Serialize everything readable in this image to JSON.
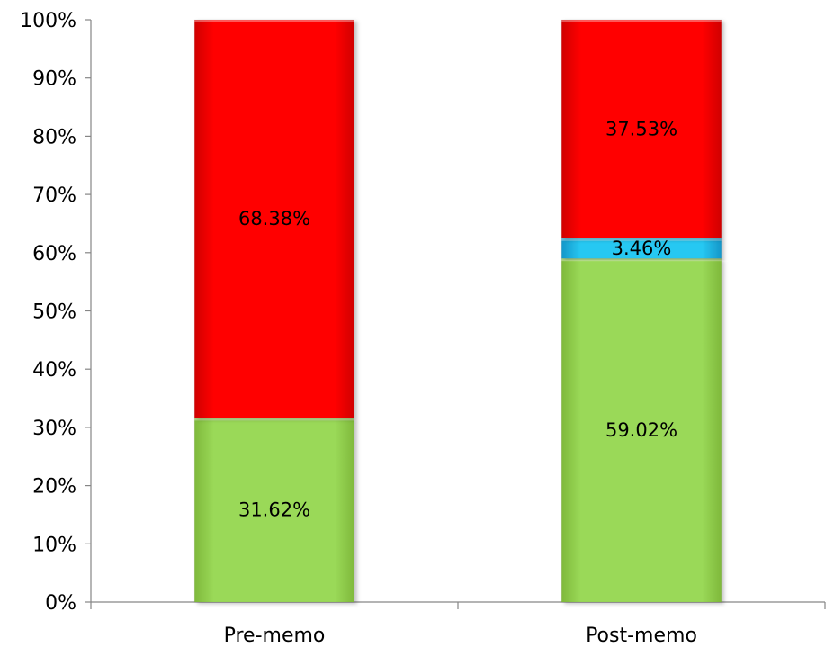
{
  "chart_data": {
    "type": "bar",
    "stacked": true,
    "percent_stacked": true,
    "categories": [
      "Pre-memo",
      "Post-memo"
    ],
    "series": [
      {
        "values": [
          31.62,
          59.02
        ],
        "labels": [
          "31.62%",
          "59.02%"
        ],
        "color": "#92D050"
      },
      {
        "values": [
          0,
          3.46
        ],
        "labels": [
          "",
          "3.46%"
        ],
        "color": "#1FBFEF"
      },
      {
        "values": [
          68.38,
          37.53
        ],
        "labels": [
          "68.38%",
          "37.53%"
        ],
        "color": "#FF0000"
      }
    ],
    "y_ticks": [
      "0%",
      "10%",
      "20%",
      "30%",
      "40%",
      "50%",
      "60%",
      "70%",
      "80%",
      "90%",
      "100%"
    ],
    "ylim": [
      0,
      100
    ],
    "grid": false,
    "legend": "none"
  }
}
